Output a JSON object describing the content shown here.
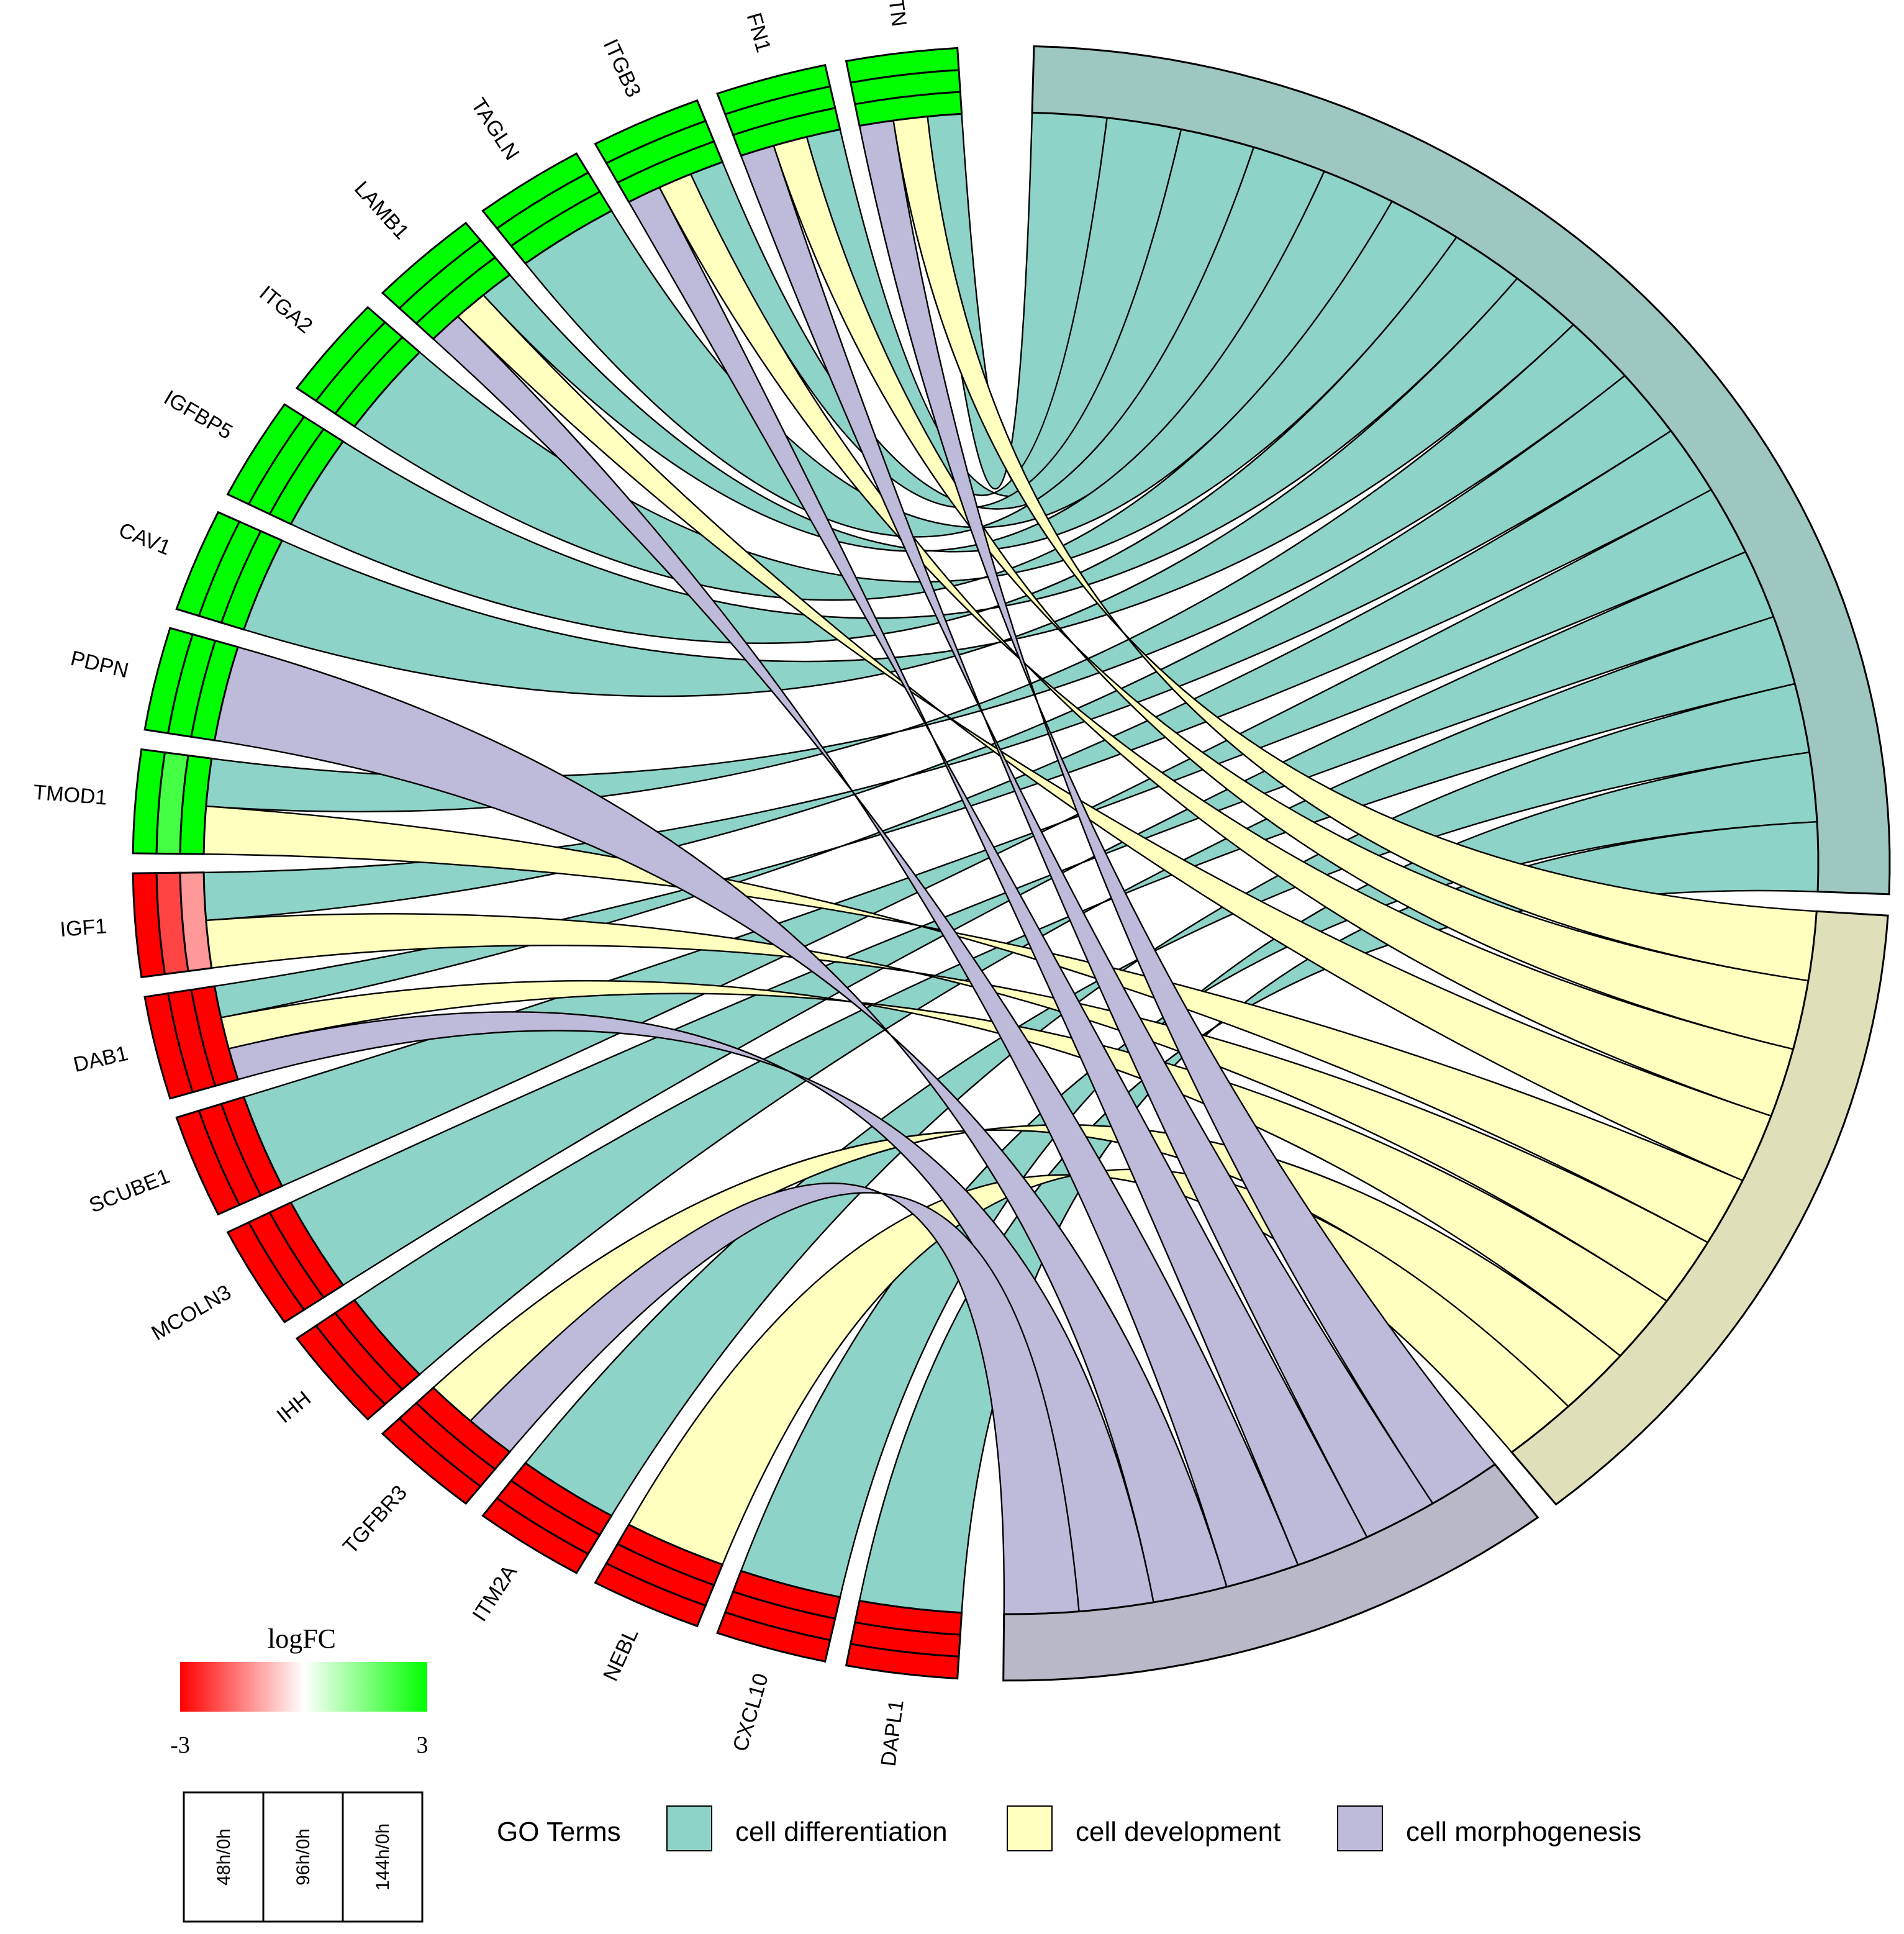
{
  "chart_data": {
    "type": "chord",
    "genes": [
      "POSTN",
      "FN1",
      "ITGB3",
      "TAGLN",
      "LAMB1",
      "ITGA2",
      "IGFBP5",
      "CAV1",
      "PDPN",
      "TMOD1",
      "IGF1",
      "DAB1",
      "SCUBE1",
      "MCOLN3",
      "IHH",
      "TGFBR3",
      "ITM2A",
      "NEBL",
      "CXCL10",
      "DAPL1"
    ],
    "logFC": [
      [
        3,
        3,
        3
      ],
      [
        3,
        3,
        3
      ],
      [
        3,
        3,
        3
      ],
      [
        3,
        3,
        3
      ],
      [
        3,
        3,
        3
      ],
      [
        3,
        3,
        3
      ],
      [
        3,
        3,
        3
      ],
      [
        3,
        3,
        3
      ],
      [
        3,
        3,
        3
      ],
      [
        3,
        2.2,
        3
      ],
      [
        -3,
        -2.2,
        -1.2
      ],
      [
        -3,
        -3,
        -3
      ],
      [
        -3,
        -3,
        -3
      ],
      [
        -3,
        -3,
        -3
      ],
      [
        -3,
        -3,
        -3
      ],
      [
        -3,
        -3,
        -3
      ],
      [
        -3,
        -3,
        -3
      ],
      [
        -3,
        -3,
        -3
      ],
      [
        -3,
        -3,
        -3
      ],
      [
        -3,
        -3,
        -3
      ]
    ],
    "terms": [
      {
        "name": "cell differentiation",
        "color": "#8ED3C7",
        "arc_color": "#9DC7C0"
      },
      {
        "name": "cell development",
        "color": "#FFFFBF",
        "arc_color": "#DFDFB9"
      },
      {
        "name": "cell morphogenesis",
        "color": "#BEBADA",
        "arc_color": "#B9B8C8"
      }
    ],
    "memberships": [
      [
        "cell differentiation",
        "cell development",
        "cell morphogenesis"
      ],
      [
        "cell differentiation",
        "cell development",
        "cell morphogenesis"
      ],
      [
        "cell differentiation",
        "cell development",
        "cell morphogenesis"
      ],
      [
        "cell differentiation"
      ],
      [
        "cell differentiation",
        "cell development",
        "cell morphogenesis"
      ],
      [
        "cell differentiation"
      ],
      [
        "cell differentiation"
      ],
      [
        "cell differentiation"
      ],
      [
        "cell morphogenesis"
      ],
      [
        "cell differentiation",
        "cell development"
      ],
      [
        "cell differentiation",
        "cell development"
      ],
      [
        "cell differentiation",
        "cell development",
        "cell morphogenesis"
      ],
      [
        "cell differentiation"
      ],
      [
        "cell differentiation"
      ],
      [
        "cell differentiation"
      ],
      [
        "cell development",
        "cell morphogenesis"
      ],
      [
        "cell differentiation"
      ],
      [
        "cell development"
      ],
      [
        "cell differentiation"
      ],
      [
        "cell differentiation"
      ]
    ],
    "colorscale": {
      "title": "logFC",
      "min": -3,
      "max": 3,
      "low": "#FF0000",
      "mid": "#FFFFFF",
      "high": "#00FF00"
    },
    "ring_labels": [
      "48h/0h",
      "96h/0h",
      "144h/0h"
    ],
    "legend_title": "GO Terms"
  }
}
